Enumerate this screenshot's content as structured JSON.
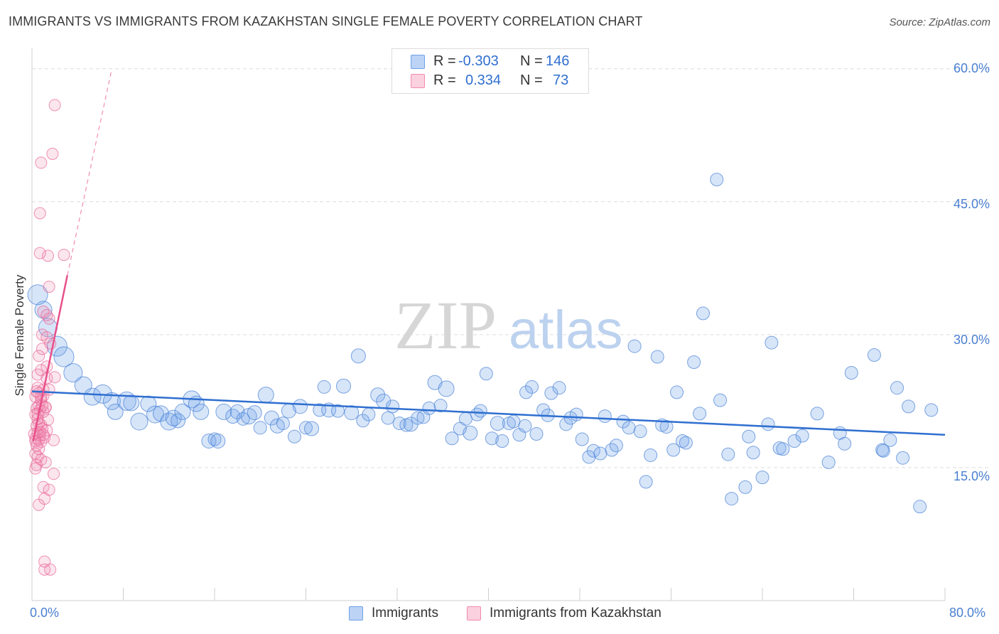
{
  "title": "IMMIGRANTS VS IMMIGRANTS FROM KAZAKHSTAN SINGLE FEMALE POVERTY CORRELATION CHART",
  "source": "Source: ZipAtlas.com",
  "watermark": {
    "zip": "ZIP",
    "atlas": "atlas"
  },
  "colors": {
    "blue": "#6fa0e8",
    "blue_line": "#2f6fd0",
    "pink": "#f28bb0",
    "pink_line": "#e8508a",
    "grid": "#dcdcdc",
    "tick_text": "#4a7fd0"
  },
  "legend": {
    "rows": [
      {
        "r_label": "R =",
        "r_value": "-0.303",
        "n_label": "N =",
        "n_value": "146"
      },
      {
        "r_label": "R =",
        "r_value": "0.334",
        "n_label": "N =",
        "n_value": "73"
      }
    ]
  },
  "bottom_legend": {
    "series1": "Immigrants",
    "series2": "Immigrants from Kazakhstan"
  },
  "chart_data": {
    "type": "scatter",
    "title": "IMMIGRANTS VS IMMIGRANTS FROM KAZAKHSTAN SINGLE FEMALE POVERTY CORRELATION CHART",
    "xlabel": "",
    "ylabel": "Single Female Poverty",
    "xlim": [
      0,
      80
    ],
    "ylim": [
      0,
      61.5
    ],
    "x_tick_labels": [
      "0.0%",
      "80.0%"
    ],
    "y_ticks": [
      15,
      30,
      45,
      60
    ],
    "y_tick_labels": [
      "15.0%",
      "30.0%",
      "45.0%",
      "60.0%"
    ],
    "grid": true,
    "series": [
      {
        "name": "Immigrants",
        "color": "#6fa0e8",
        "trend": {
          "x": [
            0,
            80
          ],
          "y": [
            23.6,
            18.7
          ]
        },
        "points": [
          [
            0.5,
            34.5,
            14
          ],
          [
            1.0,
            32.8,
            12
          ],
          [
            1.4,
            30.8,
            13
          ],
          [
            2.2,
            28.7,
            14
          ],
          [
            2.8,
            27.5,
            14
          ],
          [
            3.6,
            25.7,
            13
          ],
          [
            4.5,
            24.3,
            12
          ],
          [
            5.3,
            23.0,
            12
          ],
          [
            6.2,
            23.3,
            13
          ],
          [
            7.0,
            22.5,
            12
          ],
          [
            7.3,
            21.3,
            11
          ],
          [
            8.3,
            22.5,
            13
          ],
          [
            8.7,
            22.3,
            11
          ],
          [
            9.4,
            20.2,
            12
          ],
          [
            10.2,
            22.2,
            11
          ],
          [
            10.8,
            21.0,
            12
          ],
          [
            11.3,
            21.1,
            11
          ],
          [
            12.0,
            20.2,
            12
          ],
          [
            12.4,
            20.6,
            11
          ],
          [
            12.8,
            20.3,
            10
          ],
          [
            13.2,
            21.3,
            11
          ],
          [
            14.0,
            22.7,
            12
          ],
          [
            14.4,
            22.2,
            11
          ],
          [
            14.8,
            21.3,
            11
          ],
          [
            15.5,
            18.0,
            10
          ],
          [
            16.0,
            18.2,
            9
          ],
          [
            16.3,
            18.0,
            10
          ],
          [
            16.8,
            21.3,
            11
          ],
          [
            17.6,
            20.8,
            10
          ],
          [
            18.0,
            21.3,
            10
          ],
          [
            18.5,
            20.5,
            9
          ],
          [
            19.0,
            20.8,
            11
          ],
          [
            19.5,
            21.2,
            10
          ],
          [
            20.0,
            19.5,
            9
          ],
          [
            20.5,
            23.2,
            11
          ],
          [
            21.0,
            20.6,
            10
          ],
          [
            21.5,
            19.7,
            10
          ],
          [
            22.0,
            20.0,
            9
          ],
          [
            22.5,
            21.4,
            10
          ],
          [
            23.0,
            18.5,
            9
          ],
          [
            23.5,
            21.9,
            10
          ],
          [
            24.0,
            19.5,
            9
          ],
          [
            24.5,
            19.4,
            10
          ],
          [
            25.2,
            21.5,
            9
          ],
          [
            25.6,
            24.1,
            9
          ],
          [
            26.0,
            21.5,
            10
          ],
          [
            26.8,
            21.4,
            9
          ],
          [
            27.3,
            24.2,
            10
          ],
          [
            28.0,
            21.2,
            10
          ],
          [
            28.6,
            27.6,
            10
          ],
          [
            29.0,
            20.3,
            9
          ],
          [
            29.5,
            21.0,
            9
          ],
          [
            30.3,
            23.2,
            10
          ],
          [
            30.8,
            22.5,
            10
          ],
          [
            31.2,
            20.6,
            9
          ],
          [
            31.6,
            21.9,
            9
          ],
          [
            32.2,
            20.0,
            9
          ],
          [
            32.8,
            19.8,
            9
          ],
          [
            33.2,
            19.9,
            10
          ],
          [
            33.8,
            20.6,
            9
          ],
          [
            34.3,
            20.7,
            9
          ],
          [
            34.8,
            21.7,
            9
          ],
          [
            35.3,
            24.6,
            10
          ],
          [
            35.8,
            22.0,
            9
          ],
          [
            36.3,
            23.9,
            11
          ],
          [
            36.8,
            18.3,
            9
          ],
          [
            37.5,
            19.4,
            9
          ],
          [
            38.0,
            20.5,
            9
          ],
          [
            38.4,
            18.9,
            10
          ],
          [
            39.0,
            21.0,
            9
          ],
          [
            39.3,
            21.4,
            9
          ],
          [
            39.8,
            25.6,
            9
          ],
          [
            40.3,
            18.3,
            9
          ],
          [
            40.8,
            20.0,
            10
          ],
          [
            41.2,
            18.0,
            9
          ],
          [
            41.8,
            20.0,
            9
          ],
          [
            42.2,
            20.2,
            9
          ],
          [
            42.7,
            18.7,
            9
          ],
          [
            43.2,
            19.7,
            9
          ],
          [
            43.8,
            24.1,
            9
          ],
          [
            44.2,
            18.8,
            9
          ],
          [
            44.8,
            21.5,
            9
          ],
          [
            45.2,
            20.9,
            9
          ],
          [
            45.5,
            23.4,
            9
          ],
          [
            46.2,
            24.0,
            9
          ],
          [
            46.8,
            19.9,
            9
          ],
          [
            47.2,
            20.6,
            9
          ],
          [
            47.7,
            21.0,
            9
          ],
          [
            48.2,
            18.2,
            9
          ],
          [
            48.8,
            16.2,
            9
          ],
          [
            49.2,
            16.9,
            9
          ],
          [
            49.8,
            16.6,
            9
          ],
          [
            50.2,
            20.8,
            9
          ],
          [
            50.8,
            17.0,
            9
          ],
          [
            51.2,
            17.5,
            9
          ],
          [
            51.8,
            20.2,
            9
          ],
          [
            52.3,
            19.5,
            9
          ],
          [
            52.8,
            28.7,
            9
          ],
          [
            53.3,
            19.1,
            9
          ],
          [
            53.8,
            13.4,
            9
          ],
          [
            54.2,
            16.4,
            9
          ],
          [
            54.8,
            27.5,
            9
          ],
          [
            55.2,
            19.8,
            9
          ],
          [
            55.6,
            19.6,
            9
          ],
          [
            56.2,
            17.0,
            9
          ],
          [
            56.5,
            23.5,
            9
          ],
          [
            57.0,
            18.0,
            9
          ],
          [
            57.3,
            17.8,
            9
          ],
          [
            58.0,
            26.9,
            9
          ],
          [
            58.5,
            21.1,
            9
          ],
          [
            58.8,
            32.4,
            9
          ],
          [
            60.0,
            47.5,
            9
          ],
          [
            60.3,
            22.6,
            9
          ],
          [
            61.0,
            16.5,
            9
          ],
          [
            61.3,
            11.5,
            9
          ],
          [
            62.5,
            12.8,
            9
          ],
          [
            62.8,
            18.5,
            9
          ],
          [
            63.2,
            16.7,
            9
          ],
          [
            64.0,
            13.9,
            9
          ],
          [
            64.5,
            19.9,
            9
          ],
          [
            64.8,
            29.1,
            9
          ],
          [
            65.5,
            17.2,
            9
          ],
          [
            65.8,
            17.1,
            9
          ],
          [
            66.8,
            18.0,
            9
          ],
          [
            67.5,
            18.6,
            9
          ],
          [
            68.8,
            21.1,
            9
          ],
          [
            69.8,
            15.6,
            9
          ],
          [
            70.8,
            18.9,
            9
          ],
          [
            71.2,
            17.7,
            9
          ],
          [
            71.8,
            25.7,
            9
          ],
          [
            73.8,
            27.7,
            9
          ],
          [
            74.5,
            17.0,
            9
          ],
          [
            75.2,
            18.1,
            9
          ],
          [
            75.8,
            24.0,
            9
          ],
          [
            76.3,
            16.1,
            9
          ],
          [
            76.8,
            21.9,
            9
          ],
          [
            77.8,
            10.6,
            9
          ],
          [
            78.8,
            21.5,
            9
          ],
          [
            74.6,
            16.9,
            9
          ],
          [
            43.3,
            23.5,
            9
          ]
        ]
      },
      {
        "name": "Immigrants from Kazakhstan",
        "color": "#f28bb0",
        "trend": {
          "x": [
            0.1,
            3.1
          ],
          "y": [
            18.0,
            36.7
          ]
        },
        "trend_dashed": {
          "x": [
            3.1,
            7.0
          ],
          "y": [
            36.7,
            60.0
          ]
        },
        "points": [
          [
            2.0,
            55.9
          ],
          [
            1.8,
            50.4
          ],
          [
            0.8,
            49.4
          ],
          [
            0.7,
            43.7
          ],
          [
            1.4,
            38.9
          ],
          [
            2.8,
            39.0
          ],
          [
            0.7,
            39.2
          ],
          [
            1.5,
            35.4
          ],
          [
            1.0,
            32.6
          ],
          [
            1.5,
            31.8
          ],
          [
            1.3,
            32.2
          ],
          [
            0.9,
            30.0
          ],
          [
            1.6,
            29.0
          ],
          [
            0.9,
            28.4
          ],
          [
            1.3,
            29.7
          ],
          [
            0.6,
            27.6
          ],
          [
            1.3,
            26.4
          ],
          [
            0.8,
            26.0
          ],
          [
            0.5,
            25.5
          ],
          [
            1.3,
            25.1
          ],
          [
            2.0,
            25.2
          ],
          [
            0.5,
            24.0
          ],
          [
            1.0,
            23.8
          ],
          [
            1.5,
            23.8
          ],
          [
            0.6,
            23.4
          ],
          [
            1.0,
            23.1
          ],
          [
            0.3,
            23.0
          ],
          [
            0.8,
            22.6
          ],
          [
            0.6,
            22.0
          ],
          [
            1.2,
            21.8
          ],
          [
            0.4,
            21.7
          ],
          [
            0.7,
            21.5
          ],
          [
            1.0,
            21.3
          ],
          [
            0.3,
            21.0
          ],
          [
            1.4,
            20.4
          ],
          [
            0.6,
            20.0
          ],
          [
            0.8,
            19.8
          ],
          [
            0.4,
            19.7
          ],
          [
            0.9,
            19.4
          ],
          [
            1.3,
            19.2
          ],
          [
            0.5,
            18.9
          ],
          [
            0.2,
            18.8
          ],
          [
            0.7,
            18.6
          ],
          [
            1.1,
            18.4
          ],
          [
            0.3,
            18.3
          ],
          [
            0.6,
            18.1
          ],
          [
            1.9,
            18.1
          ],
          [
            0.8,
            17.9
          ],
          [
            0.4,
            17.5
          ],
          [
            0.6,
            17.1
          ],
          [
            0.3,
            16.6
          ],
          [
            0.5,
            16.2
          ],
          [
            0.8,
            15.9
          ],
          [
            1.2,
            15.6
          ],
          [
            0.4,
            15.3
          ],
          [
            0.3,
            14.9
          ],
          [
            1.9,
            14.3
          ],
          [
            1.0,
            12.8
          ],
          [
            1.5,
            12.5
          ],
          [
            1.1,
            11.5
          ],
          [
            0.6,
            10.8
          ],
          [
            1.1,
            4.4
          ],
          [
            1.1,
            3.5
          ],
          [
            1.6,
            3.5
          ],
          [
            0.5,
            20.5
          ],
          [
            0.9,
            22.0
          ],
          [
            0.4,
            23.6
          ],
          [
            1.2,
            21.8
          ],
          [
            0.7,
            19.0
          ],
          [
            0.3,
            18.0
          ],
          [
            1.0,
            18.7
          ],
          [
            0.5,
            21.1
          ],
          [
            0.8,
            23.0
          ]
        ]
      }
    ]
  }
}
